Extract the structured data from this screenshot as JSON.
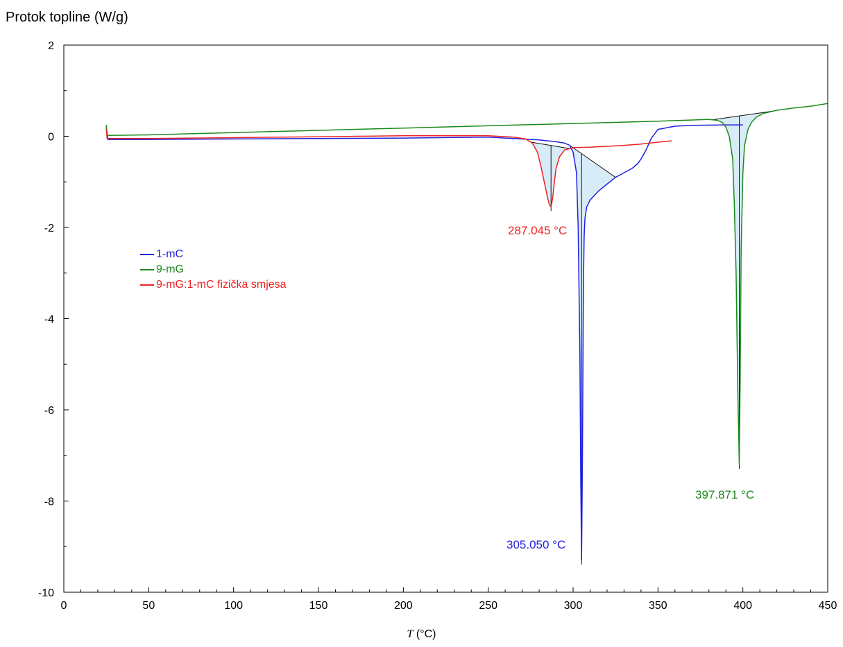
{
  "chart_data": {
    "type": "line",
    "ylabel": "Protok topline (W/g)",
    "xlabel_var": "T",
    "xlabel_unit": "(°C)",
    "xlim": [
      0,
      450
    ],
    "ylim": [
      -10,
      2
    ],
    "xticks": [
      0,
      50,
      100,
      150,
      200,
      250,
      300,
      350,
      400,
      450
    ],
    "yticks": [
      2,
      0,
      -2,
      -4,
      -6,
      -8,
      -10
    ],
    "grid": false,
    "legend_position": "left-middle",
    "series": [
      {
        "name": "1-mC",
        "color": "#2020e0",
        "x": [
          25,
          26,
          50,
          100,
          150,
          200,
          250,
          265,
          280,
          290,
          295,
          298,
          300,
          302,
          303,
          304,
          304.5,
          305,
          305.5,
          306,
          306.5,
          307,
          308,
          310,
          315,
          320,
          325,
          330,
          335,
          338,
          340,
          343,
          346,
          350,
          360,
          370,
          390,
          400
        ],
        "y": [
          0.2,
          -0.07,
          -0.07,
          -0.06,
          -0.05,
          -0.04,
          -0.02,
          -0.05,
          -0.08,
          -0.12,
          -0.15,
          -0.2,
          -0.35,
          -0.8,
          -2.0,
          -4.8,
          -7.5,
          -9.3,
          -7.0,
          -3.5,
          -2.2,
          -1.8,
          -1.55,
          -1.4,
          -1.2,
          -1.05,
          -0.9,
          -0.8,
          -0.7,
          -0.6,
          -0.5,
          -0.3,
          -0.05,
          0.15,
          0.22,
          0.24,
          0.25,
          0.25
        ]
      },
      {
        "name": "9-mG",
        "color": "#1a8a1a",
        "x": [
          25,
          25.5,
          50,
          100,
          150,
          200,
          250,
          300,
          350,
          380,
          385,
          388,
          390,
          392,
          394,
          395,
          396,
          397,
          397.9,
          398.5,
          399,
          400,
          401,
          403,
          405,
          408,
          412,
          420,
          430,
          440,
          450
        ],
        "y": [
          0.25,
          0.02,
          0.03,
          0.08,
          0.13,
          0.18,
          0.23,
          0.28,
          0.33,
          0.37,
          0.35,
          0.3,
          0.2,
          0.0,
          -0.5,
          -1.5,
          -3.0,
          -5.5,
          -7.2,
          -5.0,
          -2.5,
          -0.8,
          -0.2,
          0.15,
          0.3,
          0.42,
          0.5,
          0.57,
          0.62,
          0.66,
          0.72
        ]
      },
      {
        "name": "9-mG:1-mC fizička smjesa",
        "color": "#ee2020",
        "x": [
          25,
          25.5,
          50,
          100,
          150,
          200,
          250,
          265,
          272,
          276,
          279,
          281,
          283,
          285,
          286,
          287,
          288,
          289,
          290,
          292,
          295,
          298,
          300,
          310,
          320,
          330,
          340,
          350,
          358
        ],
        "y": [
          0.15,
          -0.05,
          -0.05,
          -0.03,
          -0.01,
          0.01,
          0.01,
          -0.02,
          -0.06,
          -0.15,
          -0.35,
          -0.65,
          -1.0,
          -1.35,
          -1.5,
          -1.55,
          -1.35,
          -1.0,
          -0.7,
          -0.45,
          -0.3,
          -0.27,
          -0.25,
          -0.24,
          -0.22,
          -0.2,
          -0.17,
          -0.13,
          -0.1
        ]
      }
    ],
    "peak_labels": [
      {
        "text": "287.045 °C",
        "color": "#ee2020"
      },
      {
        "text": "305.050 °C",
        "color": "#2020e0"
      },
      {
        "text": "397.871 °C",
        "color": "#1a8a1a"
      }
    ],
    "colors": {
      "axis": "#000000",
      "fill": "#d8ecf8"
    }
  }
}
